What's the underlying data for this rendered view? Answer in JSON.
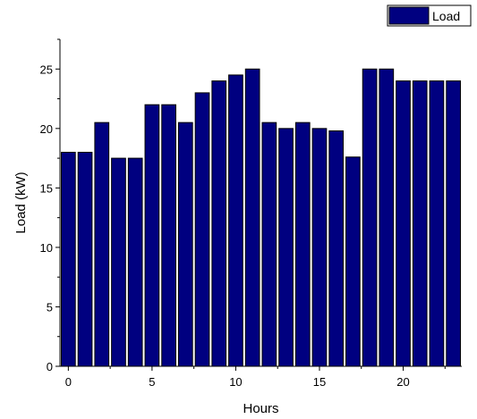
{
  "chart_data": {
    "type": "bar",
    "xlabel": "Hours",
    "ylabel": "Load (kW)",
    "x": [
      0,
      1,
      2,
      3,
      4,
      5,
      6,
      7,
      8,
      9,
      10,
      11,
      12,
      13,
      14,
      15,
      16,
      17,
      18,
      19,
      20,
      21,
      22,
      23
    ],
    "series": [
      {
        "name": "Load",
        "color": "#000080",
        "values": [
          18,
          18,
          20.5,
          17.5,
          17.5,
          22,
          22,
          20.5,
          23,
          24,
          24.5,
          25,
          20.5,
          20,
          20.5,
          20,
          19.8,
          17.6,
          25,
          25,
          24,
          24,
          24,
          24
        ]
      }
    ],
    "xlim": [
      -0.5,
      23.5
    ],
    "ylim": [
      0,
      27.5
    ],
    "x_ticks": [
      0,
      5,
      10,
      15,
      20
    ],
    "y_ticks": [
      0,
      5,
      10,
      15,
      20,
      25
    ],
    "x_tick_labels": [
      "0",
      "5",
      "10",
      "15",
      "20"
    ],
    "y_tick_labels": [
      "0",
      "5",
      "10",
      "15",
      "20",
      "25"
    ],
    "grid": false,
    "legend": "top-right"
  }
}
